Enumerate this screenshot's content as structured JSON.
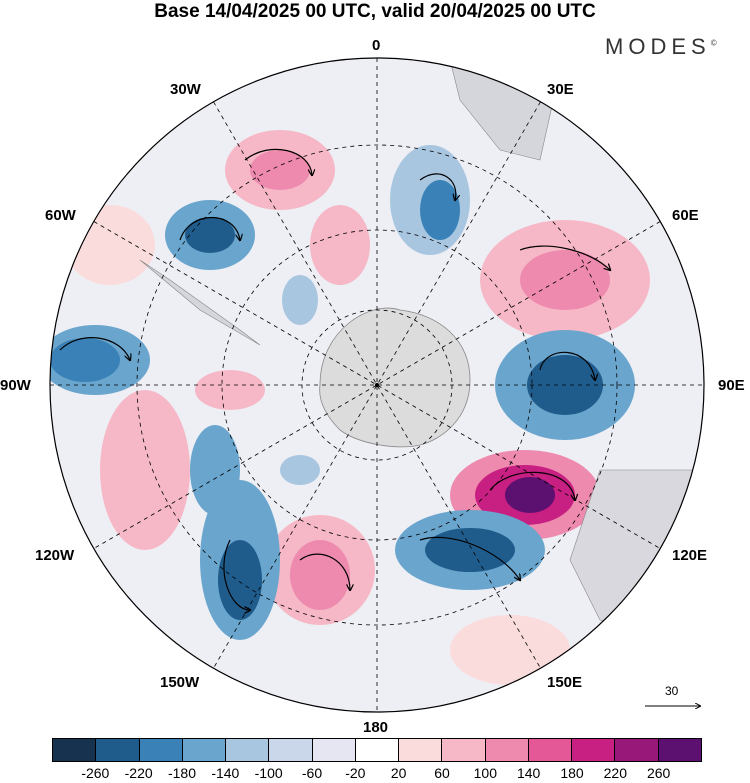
{
  "title": "Base 14/04/2025 00 UTC, valid 20/04/2025 00 UTC",
  "brand": "MODES",
  "brand_mark": "©",
  "longitude_labels": {
    "n0": "0",
    "n30e": "30E",
    "n60e": "60E",
    "n90e": "90E",
    "n120e": "120E",
    "n150e": "150E",
    "n180": "180",
    "n150w": "150W",
    "n120w": "120W",
    "n90w": "90W",
    "n60w": "60W",
    "n30w": "30W"
  },
  "reference_vector": "30",
  "colorbar": {
    "colors": [
      "#16324f",
      "#1f5c8c",
      "#3a81b7",
      "#6aa5cd",
      "#a9c6e1",
      "#cad6ea",
      "#e6e6f2",
      "#ffffff",
      "#fbdcdc",
      "#f6b8c6",
      "#ee8aae",
      "#e55898",
      "#c71f82",
      "#98187a",
      "#5c1070"
    ],
    "ticks": [
      "-260",
      "-220",
      "-180",
      "-140",
      "-100",
      "-60",
      "-20",
      "20",
      "60",
      "100",
      "140",
      "180",
      "220",
      "260"
    ]
  },
  "colors": {
    "land": "#dcdcdc",
    "grid": "#000000"
  }
}
